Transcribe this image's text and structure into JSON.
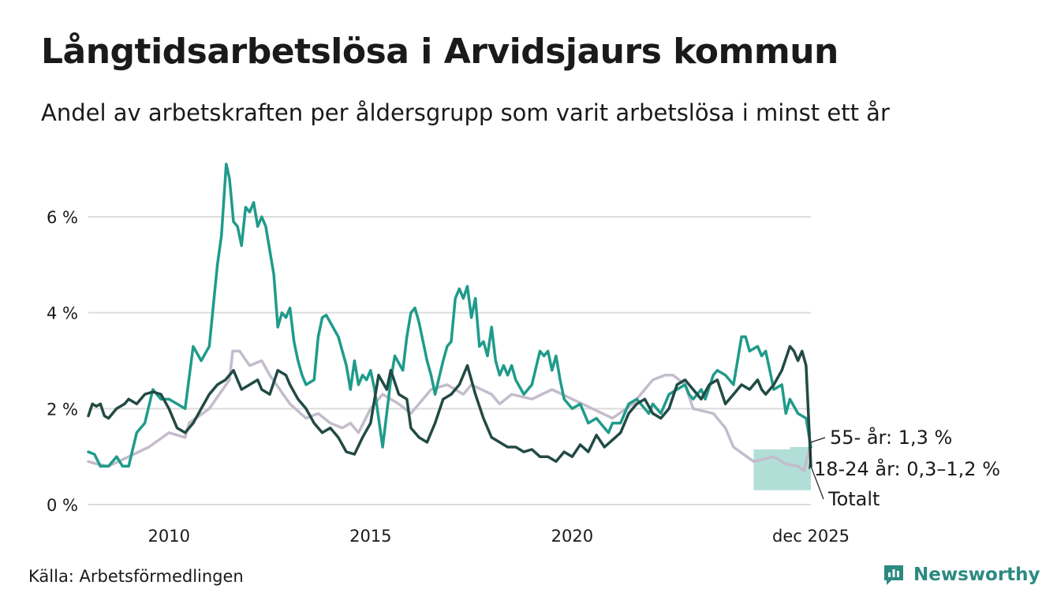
{
  "title": "Långtidsarbetslösa i Arvidsjaurs kommun",
  "subtitle": "Andel av arbetskraften per åldersgrupp som varit arbetslösa i minst ett år",
  "source": "Källa: Arbetsförmedlingen",
  "brand": {
    "name": "Newsworthy",
    "icon": "newsworthy-logo-icon",
    "color": "#2c8a80"
  },
  "chart_data": {
    "type": "line",
    "title": "Långtidsarbetslösa i Arvidsjaurs kommun",
    "xlabel": "",
    "ylabel": "",
    "x_range": [
      2008.0,
      2025.92
    ],
    "ylim": [
      0,
      7.2
    ],
    "y_ticks": [
      0,
      2,
      4,
      6
    ],
    "y_tick_labels": [
      "0 %",
      "2 %",
      "4 %",
      "6 %"
    ],
    "x_ticks": [
      2010,
      2015,
      2020,
      2025.92
    ],
    "x_tick_labels": [
      "2010",
      "2015",
      "2020",
      "dec 2025"
    ],
    "grid": true,
    "series": [
      {
        "name": "55- år",
        "color": "#c4bccc",
        "label": "55- år: 1,3 %",
        "points": [
          [
            2008.0,
            0.9
          ],
          [
            2008.2,
            0.85
          ],
          [
            2008.5,
            0.8
          ],
          [
            2009.0,
            1.0
          ],
          [
            2009.5,
            1.2
          ],
          [
            2010.0,
            1.5
          ],
          [
            2010.4,
            1.4
          ],
          [
            2010.5,
            1.7
          ],
          [
            2011.0,
            2.0
          ],
          [
            2011.5,
            2.6
          ],
          [
            2011.58,
            3.2
          ],
          [
            2011.75,
            3.2
          ],
          [
            2012.0,
            2.9
          ],
          [
            2012.3,
            3.0
          ],
          [
            2012.5,
            2.7
          ],
          [
            2013.0,
            2.1
          ],
          [
            2013.4,
            1.8
          ],
          [
            2013.7,
            1.9
          ],
          [
            2014.0,
            1.7
          ],
          [
            2014.3,
            1.6
          ],
          [
            2014.5,
            1.7
          ],
          [
            2014.7,
            1.5
          ],
          [
            2015.0,
            2.0
          ],
          [
            2015.3,
            2.3
          ],
          [
            2015.7,
            2.1
          ],
          [
            2016.0,
            1.9
          ],
          [
            2016.5,
            2.4
          ],
          [
            2016.9,
            2.5
          ],
          [
            2017.3,
            2.3
          ],
          [
            2017.5,
            2.5
          ],
          [
            2018.0,
            2.3
          ],
          [
            2018.2,
            2.1
          ],
          [
            2018.5,
            2.3
          ],
          [
            2019.0,
            2.2
          ],
          [
            2019.5,
            2.4
          ],
          [
            2020.0,
            2.2
          ],
          [
            2020.5,
            2.0
          ],
          [
            2021.0,
            1.8
          ],
          [
            2021.5,
            2.1
          ],
          [
            2022.0,
            2.6
          ],
          [
            2022.3,
            2.7
          ],
          [
            2022.5,
            2.7
          ],
          [
            2022.8,
            2.5
          ],
          [
            2023.0,
            2.0
          ],
          [
            2023.5,
            1.9
          ],
          [
            2023.8,
            1.6
          ],
          [
            2024.0,
            1.2
          ],
          [
            2024.5,
            0.9
          ],
          [
            2025.0,
            1.0
          ],
          [
            2025.3,
            0.85
          ],
          [
            2025.6,
            0.8
          ],
          [
            2025.75,
            0.7
          ],
          [
            2025.92,
            1.3
          ]
        ]
      },
      {
        "name": "18-24 år",
        "color": "#1f9b8a",
        "label": "18-24 år: 0,3–1,2 %",
        "band_color": "#a8dcd3",
        "band": [
          [
            2024.5,
            1.15,
            0.3
          ],
          [
            2025.4,
            1.15,
            0.3
          ],
          [
            2025.4,
            1.2,
            0.3
          ],
          [
            2025.92,
            1.2,
            0.3
          ]
        ],
        "points": [
          [
            2008.0,
            1.1
          ],
          [
            2008.15,
            1.05
          ],
          [
            2008.3,
            0.8
          ],
          [
            2008.5,
            0.8
          ],
          [
            2008.7,
            1.0
          ],
          [
            2008.85,
            0.8
          ],
          [
            2009.0,
            0.8
          ],
          [
            2009.2,
            1.5
          ],
          [
            2009.4,
            1.7
          ],
          [
            2009.6,
            2.4
          ],
          [
            2009.8,
            2.2
          ],
          [
            2010.0,
            2.2
          ],
          [
            2010.2,
            2.1
          ],
          [
            2010.4,
            2.0
          ],
          [
            2010.6,
            3.3
          ],
          [
            2010.8,
            3.0
          ],
          [
            2011.0,
            3.3
          ],
          [
            2011.2,
            5.0
          ],
          [
            2011.3,
            5.6
          ],
          [
            2011.42,
            7.1
          ],
          [
            2011.5,
            6.8
          ],
          [
            2011.6,
            5.9
          ],
          [
            2011.7,
            5.8
          ],
          [
            2011.8,
            5.4
          ],
          [
            2011.9,
            6.2
          ],
          [
            2012.0,
            6.1
          ],
          [
            2012.1,
            6.3
          ],
          [
            2012.2,
            5.8
          ],
          [
            2012.3,
            6.0
          ],
          [
            2012.4,
            5.8
          ],
          [
            2012.5,
            5.3
          ],
          [
            2012.6,
            4.8
          ],
          [
            2012.7,
            3.7
          ],
          [
            2012.8,
            4.0
          ],
          [
            2012.9,
            3.9
          ],
          [
            2013.0,
            4.1
          ],
          [
            2013.1,
            3.4
          ],
          [
            2013.2,
            3.0
          ],
          [
            2013.3,
            2.7
          ],
          [
            2013.4,
            2.5
          ],
          [
            2013.6,
            2.6
          ],
          [
            2013.7,
            3.5
          ],
          [
            2013.8,
            3.9
          ],
          [
            2013.9,
            3.95
          ],
          [
            2014.0,
            3.8
          ],
          [
            2014.2,
            3.5
          ],
          [
            2014.4,
            2.9
          ],
          [
            2014.5,
            2.4
          ],
          [
            2014.6,
            3.0
          ],
          [
            2014.7,
            2.5
          ],
          [
            2014.8,
            2.7
          ],
          [
            2014.9,
            2.6
          ],
          [
            2015.0,
            2.8
          ],
          [
            2015.1,
            2.4
          ],
          [
            2015.2,
            1.8
          ],
          [
            2015.3,
            1.2
          ],
          [
            2015.5,
            2.6
          ],
          [
            2015.6,
            3.1
          ],
          [
            2015.8,
            2.8
          ],
          [
            2015.9,
            3.5
          ],
          [
            2016.0,
            4.0
          ],
          [
            2016.1,
            4.1
          ],
          [
            2016.2,
            3.8
          ],
          [
            2016.4,
            3.0
          ],
          [
            2016.5,
            2.7
          ],
          [
            2016.6,
            2.3
          ],
          [
            2016.8,
            3.0
          ],
          [
            2016.9,
            3.3
          ],
          [
            2017.0,
            3.4
          ],
          [
            2017.1,
            4.3
          ],
          [
            2017.2,
            4.5
          ],
          [
            2017.3,
            4.3
          ],
          [
            2017.4,
            4.55
          ],
          [
            2017.5,
            3.9
          ],
          [
            2017.6,
            4.3
          ],
          [
            2017.7,
            3.3
          ],
          [
            2017.8,
            3.4
          ],
          [
            2017.9,
            3.1
          ],
          [
            2018.0,
            3.7
          ],
          [
            2018.1,
            3.0
          ],
          [
            2018.2,
            2.7
          ],
          [
            2018.3,
            2.9
          ],
          [
            2018.4,
            2.7
          ],
          [
            2018.5,
            2.9
          ],
          [
            2018.6,
            2.6
          ],
          [
            2018.8,
            2.3
          ],
          [
            2019.0,
            2.5
          ],
          [
            2019.2,
            3.2
          ],
          [
            2019.3,
            3.1
          ],
          [
            2019.4,
            3.2
          ],
          [
            2019.5,
            2.8
          ],
          [
            2019.6,
            3.1
          ],
          [
            2019.7,
            2.6
          ],
          [
            2019.8,
            2.2
          ],
          [
            2020.0,
            2.0
          ],
          [
            2020.2,
            2.1
          ],
          [
            2020.3,
            1.9
          ],
          [
            2020.4,
            1.7
          ],
          [
            2020.6,
            1.8
          ],
          [
            2020.8,
            1.6
          ],
          [
            2020.9,
            1.5
          ],
          [
            2021.0,
            1.7
          ],
          [
            2021.2,
            1.7
          ],
          [
            2021.4,
            2.1
          ],
          [
            2021.6,
            2.2
          ],
          [
            2021.8,
            2.0
          ],
          [
            2021.9,
            1.9
          ],
          [
            2022.0,
            2.1
          ],
          [
            2022.2,
            1.9
          ],
          [
            2022.4,
            2.3
          ],
          [
            2022.6,
            2.4
          ],
          [
            2022.8,
            2.5
          ],
          [
            2022.9,
            2.3
          ],
          [
            2023.0,
            2.2
          ],
          [
            2023.2,
            2.4
          ],
          [
            2023.3,
            2.2
          ],
          [
            2023.5,
            2.7
          ],
          [
            2023.6,
            2.8
          ],
          [
            2023.8,
            2.7
          ],
          [
            2024.0,
            2.5
          ],
          [
            2024.2,
            3.5
          ],
          [
            2024.3,
            3.5
          ],
          [
            2024.4,
            3.2
          ],
          [
            2024.6,
            3.3
          ],
          [
            2024.7,
            3.1
          ],
          [
            2024.8,
            3.2
          ],
          [
            2024.9,
            2.8
          ],
          [
            2025.0,
            2.4
          ],
          [
            2025.2,
            2.5
          ],
          [
            2025.3,
            1.9
          ],
          [
            2025.4,
            2.2
          ],
          [
            2025.6,
            1.9
          ],
          [
            2025.8,
            1.8
          ],
          [
            2025.92,
            1.2
          ]
        ]
      },
      {
        "name": "Totalt",
        "color": "#224a44",
        "label": "Totalt",
        "points": [
          [
            2008.0,
            1.85
          ],
          [
            2008.1,
            2.1
          ],
          [
            2008.2,
            2.05
          ],
          [
            2008.3,
            2.1
          ],
          [
            2008.4,
            1.85
          ],
          [
            2008.5,
            1.8
          ],
          [
            2008.7,
            2.0
          ],
          [
            2008.9,
            2.1
          ],
          [
            2009.0,
            2.2
          ],
          [
            2009.2,
            2.1
          ],
          [
            2009.4,
            2.3
          ],
          [
            2009.6,
            2.35
          ],
          [
            2009.8,
            2.3
          ],
          [
            2010.0,
            2.0
          ],
          [
            2010.2,
            1.6
          ],
          [
            2010.4,
            1.5
          ],
          [
            2010.6,
            1.7
          ],
          [
            2010.8,
            2.0
          ],
          [
            2011.0,
            2.3
          ],
          [
            2011.2,
            2.5
          ],
          [
            2011.4,
            2.6
          ],
          [
            2011.6,
            2.8
          ],
          [
            2011.8,
            2.4
          ],
          [
            2012.0,
            2.5
          ],
          [
            2012.2,
            2.6
          ],
          [
            2012.3,
            2.4
          ],
          [
            2012.5,
            2.3
          ],
          [
            2012.7,
            2.8
          ],
          [
            2012.9,
            2.7
          ],
          [
            2013.0,
            2.5
          ],
          [
            2013.2,
            2.2
          ],
          [
            2013.4,
            2.0
          ],
          [
            2013.6,
            1.7
          ],
          [
            2013.8,
            1.5
          ],
          [
            2014.0,
            1.6
          ],
          [
            2014.2,
            1.4
          ],
          [
            2014.4,
            1.1
          ],
          [
            2014.6,
            1.05
          ],
          [
            2014.8,
            1.4
          ],
          [
            2015.0,
            1.7
          ],
          [
            2015.2,
            2.7
          ],
          [
            2015.4,
            2.4
          ],
          [
            2015.5,
            2.8
          ],
          [
            2015.7,
            2.3
          ],
          [
            2015.9,
            2.2
          ],
          [
            2016.0,
            1.6
          ],
          [
            2016.2,
            1.4
          ],
          [
            2016.4,
            1.3
          ],
          [
            2016.6,
            1.7
          ],
          [
            2016.8,
            2.2
          ],
          [
            2017.0,
            2.3
          ],
          [
            2017.2,
            2.5
          ],
          [
            2017.4,
            2.9
          ],
          [
            2017.6,
            2.3
          ],
          [
            2017.8,
            1.8
          ],
          [
            2018.0,
            1.4
          ],
          [
            2018.2,
            1.3
          ],
          [
            2018.4,
            1.2
          ],
          [
            2018.6,
            1.2
          ],
          [
            2018.8,
            1.1
          ],
          [
            2019.0,
            1.15
          ],
          [
            2019.2,
            1.0
          ],
          [
            2019.4,
            1.0
          ],
          [
            2019.6,
            0.9
          ],
          [
            2019.8,
            1.1
          ],
          [
            2020.0,
            1.0
          ],
          [
            2020.2,
            1.25
          ],
          [
            2020.4,
            1.1
          ],
          [
            2020.6,
            1.45
          ],
          [
            2020.8,
            1.2
          ],
          [
            2021.0,
            1.35
          ],
          [
            2021.2,
            1.5
          ],
          [
            2021.4,
            1.9
          ],
          [
            2021.6,
            2.1
          ],
          [
            2021.8,
            2.2
          ],
          [
            2022.0,
            1.9
          ],
          [
            2022.2,
            1.8
          ],
          [
            2022.4,
            2.0
          ],
          [
            2022.6,
            2.5
          ],
          [
            2022.8,
            2.6
          ],
          [
            2023.0,
            2.4
          ],
          [
            2023.2,
            2.2
          ],
          [
            2023.4,
            2.5
          ],
          [
            2023.6,
            2.6
          ],
          [
            2023.8,
            2.1
          ],
          [
            2024.0,
            2.3
          ],
          [
            2024.2,
            2.5
          ],
          [
            2024.4,
            2.4
          ],
          [
            2024.6,
            2.6
          ],
          [
            2024.7,
            2.4
          ],
          [
            2024.8,
            2.3
          ],
          [
            2025.0,
            2.5
          ],
          [
            2025.2,
            2.8
          ],
          [
            2025.4,
            3.3
          ],
          [
            2025.5,
            3.2
          ],
          [
            2025.6,
            3.0
          ],
          [
            2025.7,
            3.2
          ],
          [
            2025.8,
            2.9
          ],
          [
            2025.92,
            0.8
          ]
        ]
      }
    ]
  }
}
